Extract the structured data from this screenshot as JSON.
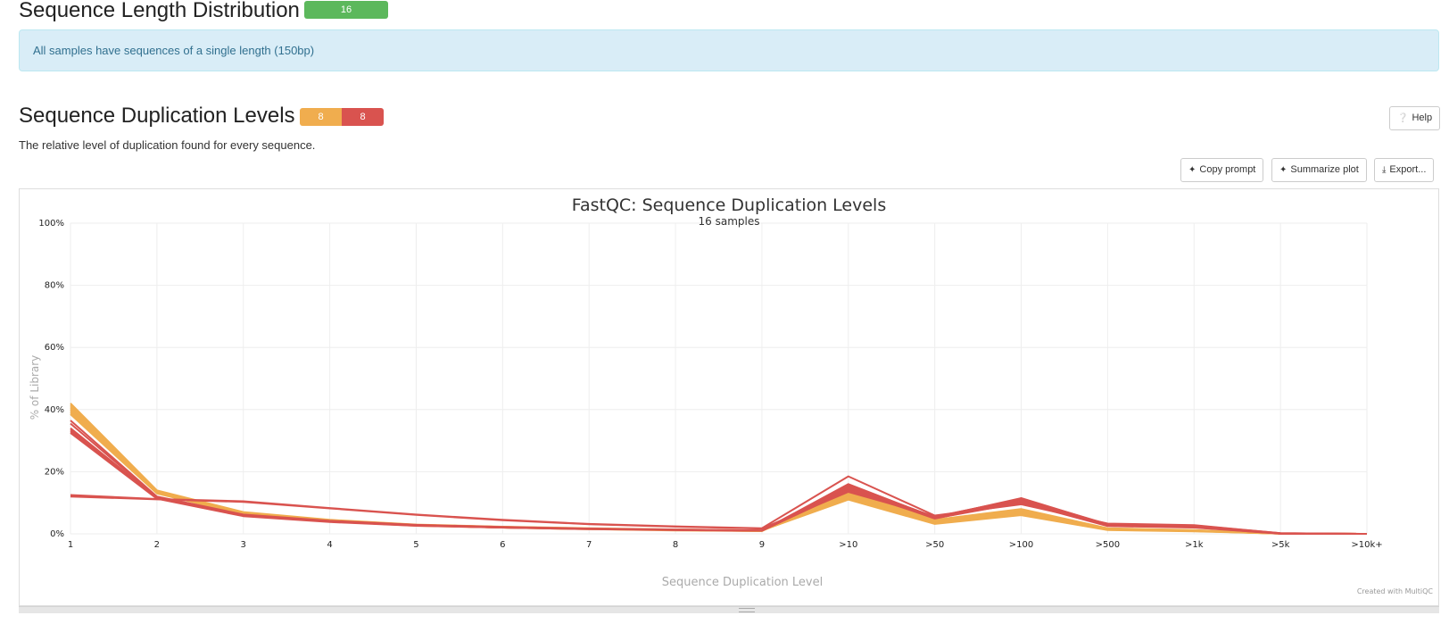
{
  "top_section": {
    "title": "Sequence Length Distribution",
    "badges": [
      {
        "label": "16",
        "color": "#5cb85c"
      }
    ],
    "info": "All samples have sequences of a single length (150bp)"
  },
  "dup_section": {
    "title": "Sequence Duplication Levels",
    "badges": [
      {
        "label": "8",
        "color": "#f0ad4e"
      },
      {
        "label": "8",
        "color": "#d9534f"
      }
    ],
    "description": "The relative level of duplication found for every sequence.",
    "help_button": "Help",
    "buttons": {
      "copy_prompt": "Copy prompt",
      "summarize": "Summarize plot",
      "export": "Export..."
    }
  },
  "chart_data": {
    "type": "line",
    "title": "FastQC: Sequence Duplication Levels",
    "subtitle": "16 samples",
    "xlabel": "Sequence Duplication Level",
    "ylabel": "% of Library",
    "ylim": [
      0,
      100
    ],
    "y_ticks": [
      "0%",
      "20%",
      "40%",
      "60%",
      "80%",
      "100%"
    ],
    "categories": [
      "1",
      "2",
      "3",
      "4",
      "5",
      "6",
      "7",
      "8",
      "9",
      ">10",
      ">50",
      ">100",
      ">500",
      ">1k",
      ">5k",
      ">10k+"
    ],
    "grid": true,
    "credit": "Created with MultiQC",
    "series": [
      {
        "color": "#f0ad4e",
        "values": [
          42,
          14,
          7,
          4.5,
          3,
          2.3,
          1.8,
          1.4,
          1.1,
          11,
          3.2,
          6,
          1.2,
          0.8,
          0.1,
          0
        ]
      },
      {
        "color": "#f0ad4e",
        "values": [
          41.5,
          13.8,
          6.9,
          4.4,
          2.9,
          2.2,
          1.7,
          1.3,
          1.0,
          11.5,
          3.3,
          6.2,
          1.3,
          0.9,
          0.1,
          0
        ]
      },
      {
        "color": "#f0ad4e",
        "values": [
          41,
          13.6,
          6.8,
          4.3,
          2.9,
          2.2,
          1.7,
          1.3,
          1.0,
          12,
          3.5,
          6.3,
          1.4,
          0.9,
          0.1,
          0
        ]
      },
      {
        "color": "#f0ad4e",
        "values": [
          40.5,
          13.5,
          6.7,
          4.2,
          2.8,
          2.1,
          1.6,
          1.3,
          1.0,
          12.5,
          3.6,
          6.5,
          1.4,
          1.0,
          0.1,
          0
        ]
      },
      {
        "color": "#f0ad4e",
        "values": [
          40,
          13.4,
          6.6,
          4.2,
          2.8,
          2.1,
          1.6,
          1.2,
          1.0,
          13,
          3.8,
          6.6,
          1.5,
          1.0,
          0.1,
          0
        ]
      },
      {
        "color": "#f0ad4e",
        "values": [
          39.5,
          13.3,
          6.5,
          4.1,
          2.7,
          2.0,
          1.6,
          1.2,
          0.9,
          13.5,
          4.0,
          7.0,
          1.6,
          1.1,
          0.1,
          0
        ]
      },
      {
        "color": "#f0ad4e",
        "values": [
          39,
          13.1,
          6.4,
          4.0,
          2.7,
          2.0,
          1.5,
          1.2,
          0.9,
          14,
          4.2,
          7.5,
          1.7,
          1.1,
          0.1,
          0
        ]
      },
      {
        "color": "#f0ad4e",
        "values": [
          38.5,
          13.0,
          6.3,
          4.0,
          2.6,
          2.0,
          1.5,
          1.1,
          0.9,
          14.5,
          4.5,
          8.0,
          1.8,
          1.2,
          0.1,
          0
        ]
      },
      {
        "color": "#d9534f",
        "values": [
          36.5,
          12.0,
          6.2,
          4.2,
          2.9,
          2.2,
          1.7,
          1.4,
          1.1,
          15,
          5.0,
          10,
          2.5,
          2.0,
          0.1,
          0
        ]
      },
      {
        "color": "#d9534f",
        "values": [
          35.5,
          11.8,
          6.0,
          4.1,
          2.8,
          2.1,
          1.7,
          1.3,
          1.1,
          14.5,
          4.9,
          10.5,
          2.6,
          2.1,
          0.1,
          0
        ]
      },
      {
        "color": "#d9534f",
        "values": [
          34,
          11.6,
          5.9,
          4.0,
          2.8,
          2.1,
          1.6,
          1.3,
          1.0,
          14,
          5.2,
          11,
          2.8,
          2.3,
          0.1,
          0
        ]
      },
      {
        "color": "#d9534f",
        "values": [
          33.5,
          11.5,
          5.8,
          3.9,
          2.7,
          2.0,
          1.6,
          1.3,
          1.0,
          15.5,
          5.5,
          11.2,
          2.9,
          2.4,
          0.1,
          0
        ]
      },
      {
        "color": "#d9534f",
        "values": [
          33,
          11.4,
          5.8,
          3.9,
          2.7,
          2.0,
          1.6,
          1.2,
          1.0,
          16,
          5.3,
          11.5,
          3.0,
          2.5,
          0.1,
          0
        ]
      },
      {
        "color": "#d9534f",
        "values": [
          32.5,
          11.3,
          5.7,
          3.8,
          2.6,
          2.0,
          1.5,
          1.2,
          1.0,
          14,
          5.4,
          11.3,
          3.1,
          2.6,
          0.1,
          0
        ]
      },
      {
        "color": "#d9534f",
        "values": [
          12.5,
          11.2,
          10.5,
          8.3,
          6.2,
          4.5,
          3.2,
          2.4,
          1.8,
          18.5,
          5.9,
          9.5,
          3.3,
          2.8,
          0.2,
          0
        ]
      },
      {
        "color": "#d9534f",
        "values": [
          12,
          11.1,
          10.3,
          8.2,
          6.1,
          4.4,
          3.1,
          2.3,
          1.7,
          13.5,
          5.7,
          10,
          3.2,
          2.7,
          0.2,
          0
        ]
      }
    ]
  }
}
